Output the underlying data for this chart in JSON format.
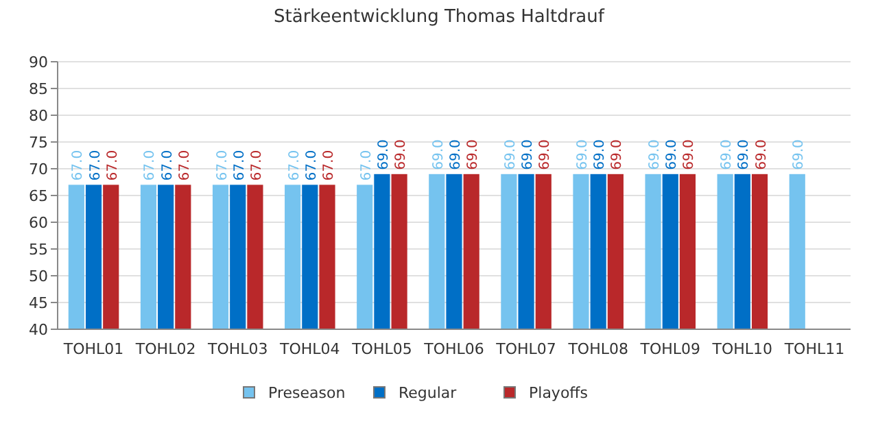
{
  "chart_data": {
    "type": "bar",
    "title": "Stärkeentwicklung Thomas Haltdrauf",
    "categories": [
      "TOHL01",
      "TOHL02",
      "TOHL03",
      "TOHL04",
      "TOHL05",
      "TOHL06",
      "TOHL07",
      "TOHL08",
      "TOHL09",
      "TOHL10",
      "TOHL11"
    ],
    "series": [
      {
        "name": "Preseason",
        "color": "#75c3ef",
        "values": [
          67,
          67,
          67,
          67,
          67,
          69,
          69,
          69,
          69,
          69,
          69
        ],
        "value_labels": [
          "67.0",
          "67.0",
          "67.0",
          "67.0",
          "67.0",
          "69.0",
          "69.0",
          "69.0",
          "69.0",
          "69.0",
          "69.0"
        ]
      },
      {
        "name": "Regular",
        "color": "#006fc6",
        "values": [
          67,
          67,
          67,
          67,
          69,
          69,
          69,
          69,
          69,
          69,
          null
        ],
        "value_labels": [
          "67.0",
          "67.0",
          "67.0",
          "67.0",
          "69.0",
          "69.0",
          "69.0",
          "69.0",
          "69.0",
          "69.0",
          null
        ]
      },
      {
        "name": "Playoffs",
        "color": "#b9282a",
        "values": [
          67,
          67,
          67,
          67,
          69,
          69,
          69,
          69,
          69,
          69,
          null
        ],
        "value_labels": [
          "67.0",
          "67.0",
          "67.0",
          "67.0",
          "69.0",
          "69.0",
          "69.0",
          "69.0",
          "69.0",
          "69.0",
          null
        ]
      }
    ],
    "ylim": [
      40,
      90
    ],
    "yticks": [
      40,
      45,
      50,
      55,
      60,
      65,
      70,
      75,
      80,
      85,
      90
    ],
    "grid": "y",
    "legend": "bottom"
  }
}
